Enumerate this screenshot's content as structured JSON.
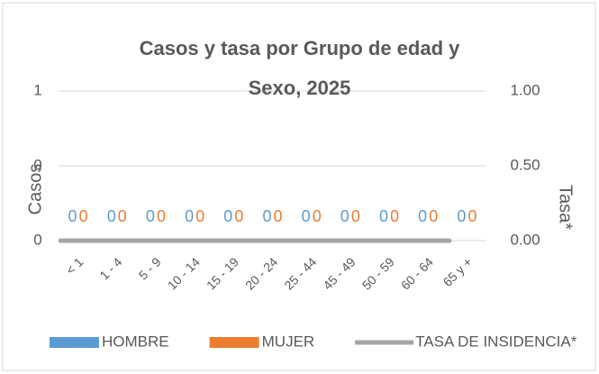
{
  "chart_data": {
    "type": "bar",
    "title": "Casos y tasa por Grupo de edad y Sexo, 2025",
    "ylabel": "Casos",
    "y2label": "Tasa*",
    "categories": [
      "< 1",
      "1 - 4",
      "5 - 9",
      "10 - 14",
      "15 - 19",
      "20 - 24",
      "25 - 44",
      "45 - 49",
      "50 - 59",
      "60 - 64",
      "65 y +"
    ],
    "series": [
      {
        "name": "HOMBRE",
        "color": "#5b9bd5",
        "values": [
          0,
          0,
          0,
          0,
          0,
          0,
          0,
          0,
          0,
          0,
          0
        ]
      },
      {
        "name": "MUJER",
        "color": "#ed7d31",
        "values": [
          0,
          0,
          0,
          0,
          0,
          0,
          0,
          0,
          0,
          0,
          0
        ]
      },
      {
        "name": "TASA DE INSIDENCIA*",
        "color": "#a5a5a5",
        "type": "line",
        "axis": "y2",
        "values": [
          0,
          0,
          0,
          0,
          0,
          0,
          0,
          0,
          0,
          0,
          0
        ]
      }
    ],
    "ylim": [
      0,
      1
    ],
    "yticks": [
      0,
      {
        "value": 0.5,
        "label": "0"
      },
      1
    ],
    "y2lim": [
      0,
      1
    ],
    "y2ticks": [
      {
        "value": 0,
        "label": "0.00"
      },
      {
        "value": 0.5,
        "label": "0.50"
      },
      {
        "value": 1,
        "label": "1.00"
      }
    ],
    "grid": true,
    "legend": "bottom"
  }
}
